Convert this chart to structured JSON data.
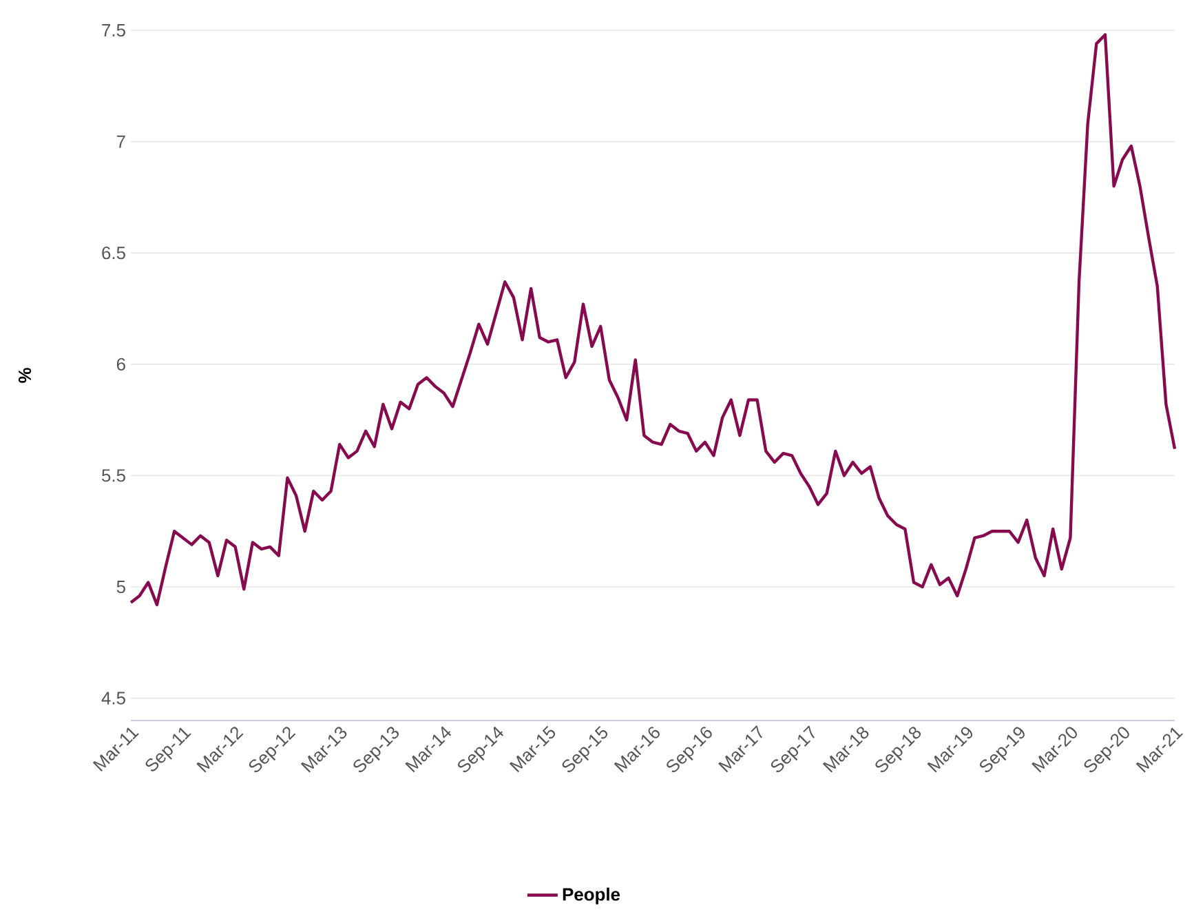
{
  "chart_data": {
    "type": "line",
    "ylabel": "%",
    "categories": [
      "Mar-11",
      null,
      null,
      null,
      null,
      null,
      "Sep-11",
      null,
      null,
      null,
      null,
      null,
      "Mar-12",
      null,
      null,
      null,
      null,
      null,
      "Sep-12",
      null,
      null,
      null,
      null,
      null,
      "Mar-13",
      null,
      null,
      null,
      null,
      null,
      "Sep-13",
      null,
      null,
      null,
      null,
      null,
      "Mar-14",
      null,
      null,
      null,
      null,
      null,
      "Sep-14",
      null,
      null,
      null,
      null,
      null,
      "Mar-15",
      null,
      null,
      null,
      null,
      null,
      "Sep-15",
      null,
      null,
      null,
      null,
      null,
      "Mar-16",
      null,
      null,
      null,
      null,
      null,
      "Sep-16",
      null,
      null,
      null,
      null,
      null,
      "Mar-17",
      null,
      null,
      null,
      null,
      null,
      "Sep-17",
      null,
      null,
      null,
      null,
      null,
      "Mar-18",
      null,
      null,
      null,
      null,
      null,
      "Sep-18",
      null,
      null,
      null,
      null,
      null,
      "Mar-19",
      null,
      null,
      null,
      null,
      null,
      "Sep-19",
      null,
      null,
      null,
      null,
      null,
      "Mar-20",
      null,
      null,
      null,
      null,
      null,
      "Sep-20",
      null,
      null,
      null,
      null,
      null,
      "Mar-21"
    ],
    "series": [
      {
        "name": "People",
        "color": "#870a4f",
        "values": [
          4.93,
          4.96,
          5.02,
          4.92,
          5.09,
          5.25,
          5.22,
          5.19,
          5.23,
          5.2,
          5.05,
          5.21,
          5.18,
          4.99,
          5.2,
          5.17,
          5.18,
          5.14,
          5.49,
          5.41,
          5.25,
          5.43,
          5.39,
          5.43,
          5.64,
          5.58,
          5.61,
          5.7,
          5.63,
          5.82,
          5.71,
          5.83,
          5.8,
          5.91,
          5.94,
          5.9,
          5.87,
          5.81,
          5.93,
          6.05,
          6.18,
          6.09,
          6.23,
          6.37,
          6.3,
          6.11,
          6.34,
          6.12,
          6.1,
          6.11,
          5.94,
          6.01,
          6.27,
          6.08,
          6.17,
          5.93,
          5.85,
          5.75,
          6.02,
          5.68,
          5.65,
          5.64,
          5.73,
          5.7,
          5.69,
          5.61,
          5.65,
          5.59,
          5.76,
          5.84,
          5.68,
          5.84,
          5.84,
          5.61,
          5.56,
          5.6,
          5.59,
          5.51,
          5.45,
          5.37,
          5.42,
          5.61,
          5.5,
          5.56,
          5.51,
          5.54,
          5.4,
          5.32,
          5.28,
          5.26,
          5.02,
          5.0,
          5.1,
          5.01,
          5.04,
          4.96,
          5.08,
          5.22,
          5.23,
          5.25,
          5.25,
          5.25,
          5.2,
          5.3,
          5.13,
          5.05,
          5.26,
          5.08,
          5.22,
          6.37,
          7.08,
          7.44,
          7.48,
          6.8,
          6.92,
          6.98,
          6.8,
          6.57,
          6.35,
          5.82,
          5.62
        ]
      }
    ],
    "ylim": [
      4.4,
      7.5
    ],
    "yticks": [
      4.5,
      5,
      5.5,
      6,
      6.5,
      7,
      7.5
    ],
    "grid": "y",
    "legend": "bottom",
    "marker": "none",
    "line_style": "solid"
  }
}
